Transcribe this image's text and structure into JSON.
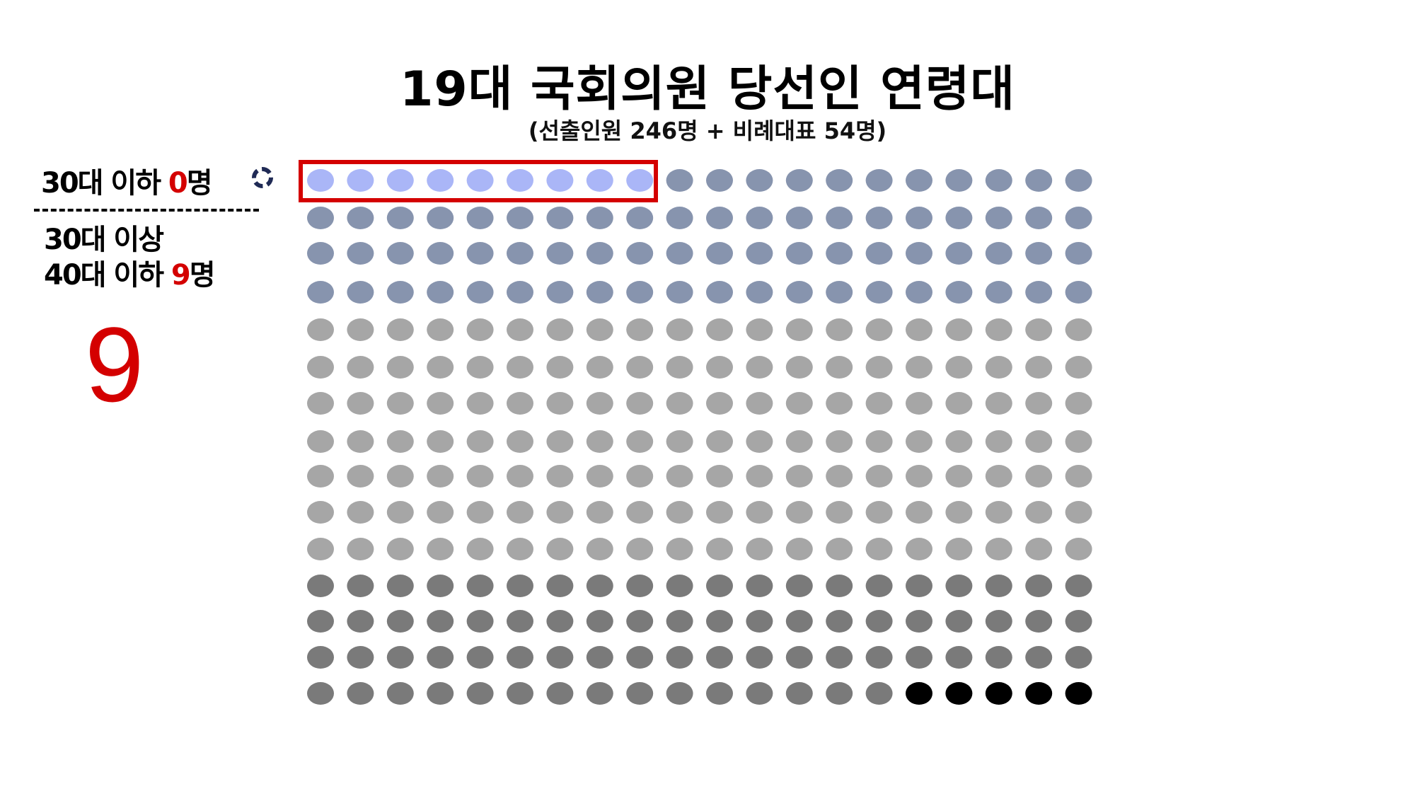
{
  "title": "19대 국회의원 당선인 연령대",
  "subtitle": "(선출인원 246명 + 비례대표 54명)",
  "labels": {
    "under_30s_prefix": "30대 이하 ",
    "under_30s_count": "0",
    "under_30s_suffix": "명",
    "range_line1": "30대 이상",
    "range_line2_prefix": "40대 이하 ",
    "range_line2_count": "9",
    "range_line2_suffix": "명"
  },
  "big_number": "9",
  "colors": {
    "highlight_red": "#d40000",
    "group_highlighted": "#aab6f7",
    "group_dark_blue": "#8794ae",
    "group_light_gray": "#a6a6a6",
    "group_dark_gray": "#7a7a7a",
    "group_black": "#000000"
  },
  "chart_data": {
    "type": "dot-matrix",
    "total": 300,
    "columns": 20,
    "rows": 15,
    "groups": [
      {
        "count": 9,
        "color": "#aab6f7"
      },
      {
        "count": 71,
        "color": "#8794ae"
      },
      {
        "count": 140,
        "color": "#a6a6a6"
      },
      {
        "count": 75,
        "color": "#7a7a7a"
      },
      {
        "count": 5,
        "color": "#000000"
      }
    ],
    "highlighted_count": 9
  }
}
